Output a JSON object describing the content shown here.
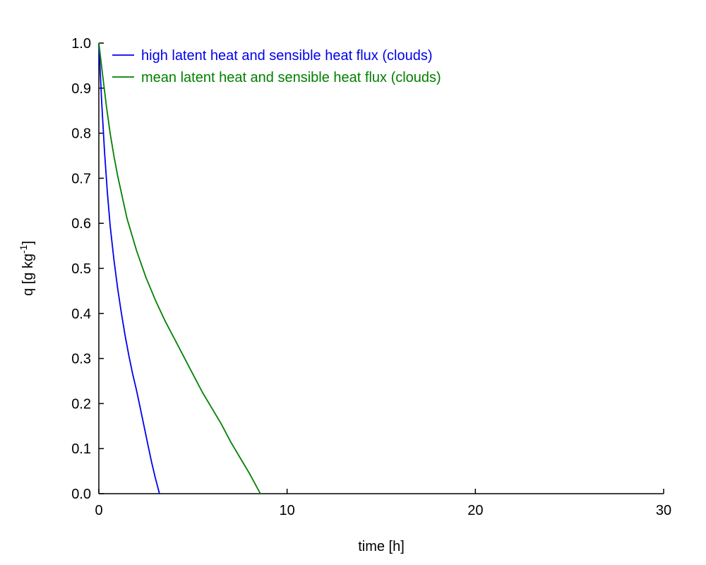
{
  "chart_data": {
    "type": "line",
    "xlabel": "time [h]",
    "ylabel": {
      "base": "q [g kg",
      "superscript": "-1",
      "suffix": "]"
    },
    "xlim": [
      0,
      30
    ],
    "ylim": [
      0,
      1
    ],
    "xticks": [
      0,
      10,
      20,
      30
    ],
    "xtick_labels": [
      "0",
      "10",
      "20",
      "30"
    ],
    "yticks": [
      0,
      0.1,
      0.2,
      0.3,
      0.4,
      0.5,
      0.6,
      0.7,
      0.8,
      0.9,
      1.0
    ],
    "ytick_labels": [
      "0.0",
      "0.1",
      "0.2",
      "0.3",
      "0.4",
      "0.5",
      "0.6",
      "0.7",
      "0.8",
      "0.9",
      "1.0"
    ],
    "grid": false,
    "legend": "top-left",
    "series": [
      {
        "name": "high latent heat and sensible heat flux (clouds)",
        "color": "#0000ee",
        "x": [
          0,
          0.15,
          0.3,
          0.45,
          0.6,
          0.8,
          1.0,
          1.2,
          1.4,
          1.6,
          1.8,
          2.0,
          2.2,
          2.4,
          2.6,
          2.8,
          3.0,
          3.22
        ],
        "y": [
          1.0,
          0.87,
          0.76,
          0.67,
          0.595,
          0.52,
          0.455,
          0.4,
          0.35,
          0.305,
          0.265,
          0.23,
          0.19,
          0.15,
          0.11,
          0.07,
          0.035,
          0.0
        ]
      },
      {
        "name": "mean latent heat and sensible heat flux (clouds)",
        "color": "#008000",
        "x": [
          0,
          0.2,
          0.4,
          0.6,
          0.8,
          1.0,
          1.5,
          2.0,
          2.5,
          3.0,
          3.5,
          4.0,
          4.5,
          5.0,
          5.5,
          6.0,
          6.5,
          7.0,
          7.5,
          8.0,
          8.58
        ],
        "y": [
          1.0,
          0.93,
          0.86,
          0.8,
          0.75,
          0.705,
          0.61,
          0.54,
          0.48,
          0.43,
          0.385,
          0.345,
          0.305,
          0.265,
          0.225,
          0.19,
          0.155,
          0.115,
          0.08,
          0.045,
          0.0
        ]
      }
    ]
  }
}
